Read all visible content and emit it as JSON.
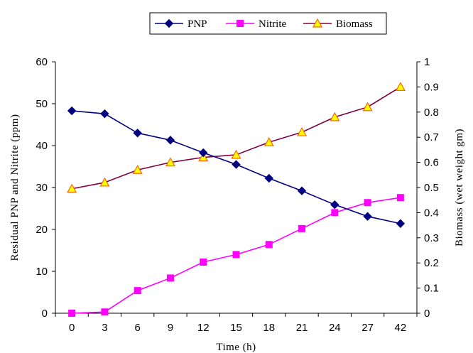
{
  "chart_data": {
    "type": "line",
    "categories": [
      "0",
      "3",
      "6",
      "9",
      "12",
      "15",
      "18",
      "21",
      "24",
      "27",
      "42"
    ],
    "xlabel": "Time (h)",
    "ylabel": "Residual PNP and Nitrite (ppm)",
    "y2label": "Biomass (wet weight gm)",
    "ylim": [
      0,
      60
    ],
    "y2lim": [
      0,
      1
    ],
    "yticks": [
      0,
      10,
      20,
      30,
      40,
      50,
      60
    ],
    "y2ticks": [
      0,
      0.1,
      0.2,
      0.3,
      0.4,
      0.5,
      0.6,
      0.7,
      0.8,
      0.9,
      1
    ],
    "y2tick_labels": [
      "0",
      "0.1",
      "0.2",
      "0.3",
      "0.4",
      "0.5",
      "0.6",
      "0.7",
      "0.8",
      "0.9",
      "1"
    ],
    "grid": false,
    "legend_position": "top",
    "series": [
      {
        "name": "PNP",
        "axis": "left",
        "marker": "diamond",
        "color": "#000080",
        "values": [
          48.3,
          47.6,
          43.0,
          41.3,
          38.3,
          35.5,
          32.2,
          29.2,
          25.9,
          23.1,
          21.4
        ]
      },
      {
        "name": "Nitrite",
        "axis": "left",
        "marker": "square",
        "color": "#ff00ff",
        "values": [
          0,
          0.3,
          5.4,
          8.4,
          12.2,
          14.0,
          16.4,
          20.2,
          24.0,
          26.4,
          27.6
        ]
      },
      {
        "name": "Biomass",
        "axis": "right",
        "marker": "triangle",
        "color": "#800040",
        "fill": "#ffff00",
        "edge": "#ff6600",
        "values": [
          0.495,
          0.52,
          0.57,
          0.6,
          0.62,
          0.63,
          0.68,
          0.72,
          0.78,
          0.82,
          0.9
        ]
      }
    ]
  }
}
